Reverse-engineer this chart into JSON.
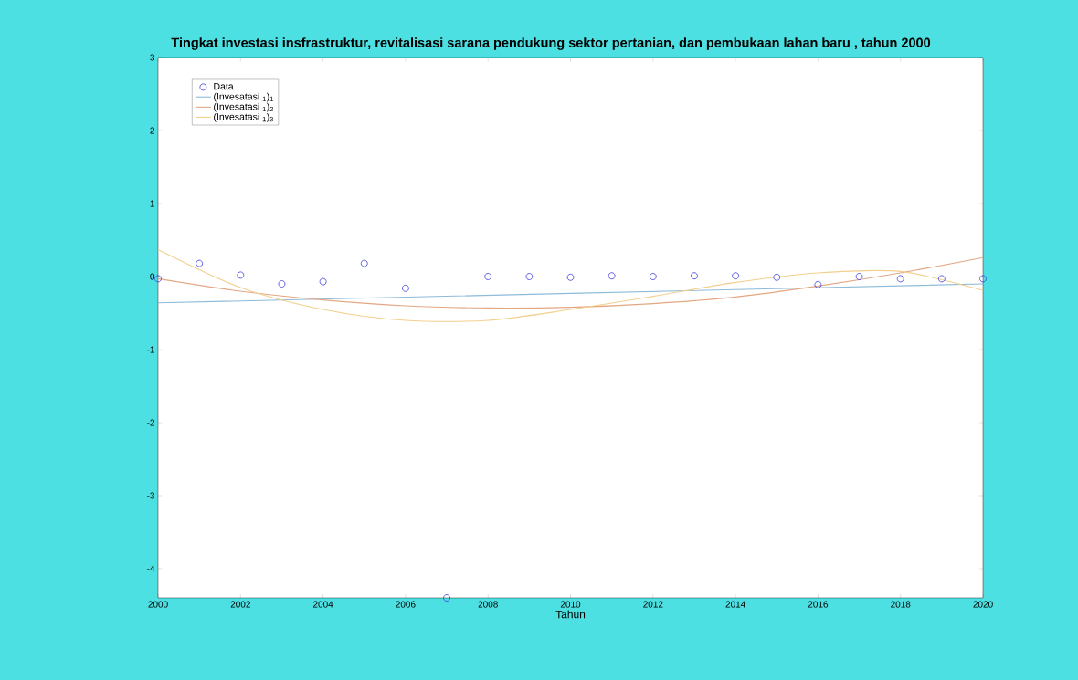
{
  "chart_data": {
    "type": "scatter",
    "title": "Tingkat investasi insfrastruktur, revitalisasi sarana pendukung sektor pertanian, dan pembukaan lahan baru , tahun 2000",
    "xlabel": "Tahun",
    "x": [
      2000,
      2001,
      2002,
      2003,
      2004,
      2005,
      2006,
      2007,
      2008,
      2009,
      2010,
      2011,
      2012,
      2013,
      2014,
      2015,
      2016,
      2017,
      2018,
      2019,
      2020
    ],
    "series": [
      {
        "name": "Data",
        "marker": "circle",
        "color": "#3b3bdc",
        "values": [
          -0.03,
          0.18,
          0.02,
          -0.1,
          -0.07,
          0.18,
          -0.16,
          -4.4,
          0,
          0,
          -0.01,
          0.01,
          0,
          0.01,
          0.01,
          -0.01,
          -0.11,
          0,
          -0.03,
          -0.03,
          -0.03
        ]
      },
      {
        "name": "(Invesatasi $_{1}$)$_{1}$",
        "type": "line",
        "marker": "none",
        "color": "#8dbbd9",
        "x": [
          2000,
          2010,
          2020
        ],
        "values": [
          -0.36,
          -0.23,
          -0.1
        ]
      },
      {
        "name": "(Invesatasi $_{1}$)$_{2}$",
        "type": "line",
        "marker": "none",
        "color": "#e3a784",
        "x": [
          2000,
          2002,
          2004,
          2006,
          2008,
          2010,
          2012,
          2014,
          2016,
          2018,
          2020
        ],
        "values": [
          -0.03,
          -0.2,
          -0.32,
          -0.4,
          -0.43,
          -0.42,
          -0.37,
          -0.28,
          -0.13,
          0.05,
          0.26
        ]
      },
      {
        "name": "(Invesatasi $_{1}$)$_{3}$",
        "type": "line",
        "marker": "none",
        "color": "#f2d08f",
        "x": [
          2000,
          2002,
          2004,
          2006,
          2008,
          2010,
          2012,
          2014,
          2016,
          2018,
          2020
        ],
        "values": [
          0.37,
          -0.15,
          -0.45,
          -0.6,
          -0.6,
          -0.45,
          -0.27,
          -0.08,
          0.05,
          0.07,
          -0.19
        ]
      }
    ],
    "xlim": [
      2000,
      2020
    ],
    "xticks": [
      2000,
      2002,
      2004,
      2006,
      2008,
      2010,
      2012,
      2014,
      2016,
      2018,
      2020
    ],
    "ylim": [
      -4.4,
      3
    ],
    "yticks": [
      -4,
      -3,
      -2,
      -1,
      0,
      1,
      2,
      3
    ],
    "grid": false,
    "legend": "top left"
  }
}
